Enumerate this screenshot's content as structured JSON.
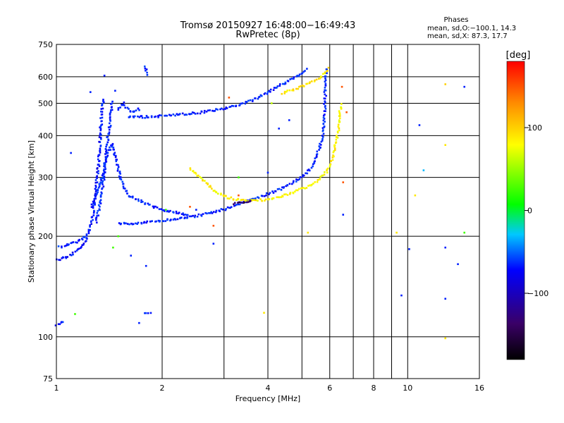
{
  "chart_data": {
    "type": "scatter",
    "title": "Tromsø 20150927 16:48:00−16:49:43",
    "subtitle": "RwPretec (8p)",
    "xlabel": "Frequency [MHz]",
    "ylabel": "Stationary phase Virtual Height [km]",
    "x_scale": "log",
    "y_scale": "log",
    "xlim": [
      1,
      16
    ],
    "ylim": [
      75,
      750
    ],
    "x_ticks": [
      1,
      2,
      4,
      6,
      8,
      10,
      16
    ],
    "x_minor_grid": [
      3,
      5,
      7,
      9
    ],
    "y_ticks": [
      75,
      100,
      200,
      300,
      400,
      500,
      600,
      750
    ],
    "grid": true,
    "phases_box": {
      "title": "Phases",
      "line1": "mean, sd,O:−100.1, 14.3",
      "line2": "mean, sd,X:  87.3, 17.7"
    },
    "colorbar": {
      "label": "[deg]",
      "range": [
        -180,
        180
      ],
      "ticks": [
        {
          "value": 100,
          "label": "100"
        },
        {
          "value": 0,
          "label": "0"
        },
        {
          "value": -100,
          "label": "−100"
        }
      ],
      "colors": [
        "#000000",
        "#3a0066",
        "#0000ff",
        "#00c8ff",
        "#00ff00",
        "#ffff00",
        "#ff8c00",
        "#ff0000"
      ]
    },
    "series": [
      {
        "traces": [
          {
            "phase": -105,
            "points": [
              [
                1.0,
                170
              ],
              [
                1.05,
                172
              ],
              [
                1.1,
                176
              ],
              [
                1.15,
                182
              ],
              [
                1.2,
                190
              ],
              [
                1.22,
                198
              ],
              [
                1.24,
                208
              ],
              [
                1.26,
                222
              ],
              [
                1.28,
                245
              ],
              [
                1.3,
                285
              ],
              [
                1.32,
                330
              ],
              [
                1.33,
                380
              ],
              [
                1.34,
                430
              ],
              [
                1.35,
                480
              ],
              [
                1.36,
                520
              ]
            ]
          },
          {
            "phase": -100,
            "points": [
              [
                1.02,
                186
              ],
              [
                1.07,
                188
              ],
              [
                1.12,
                191
              ],
              [
                1.17,
                195
              ],
              [
                1.22,
                200
              ]
            ]
          },
          {
            "phase": -100,
            "points": [
              [
                1.3,
                220
              ],
              [
                1.33,
                250
              ],
              [
                1.36,
                290
              ],
              [
                1.38,
                340
              ],
              [
                1.4,
                390
              ],
              [
                1.42,
                430
              ],
              [
                1.43,
                470
              ],
              [
                1.44,
                510
              ]
            ]
          },
          {
            "phase": -100,
            "points": [
              [
                1.26,
                245
              ],
              [
                1.3,
                265
              ],
              [
                1.35,
                300
              ],
              [
                1.4,
                350
              ],
              [
                1.44,
                380
              ],
              [
                1.48,
                340
              ],
              [
                1.52,
                300
              ],
              [
                1.56,
                280
              ],
              [
                1.6,
                265
              ]
            ]
          },
          {
            "phase": -100,
            "points": [
              [
                1.5,
                218
              ],
              [
                1.7,
                218
              ],
              [
                2.0,
                223
              ],
              [
                2.3,
                226
              ],
              [
                2.6,
                232
              ],
              [
                2.9,
                238
              ],
              [
                3.2,
                246
              ],
              [
                3.5,
                255
              ],
              [
                3.9,
                265
              ],
              [
                4.3,
                276
              ],
              [
                4.7,
                290
              ],
              [
                5.1,
                305
              ],
              [
                5.4,
                330
              ],
              [
                5.6,
                365
              ],
              [
                5.75,
                410
              ],
              [
                5.8,
                460
              ],
              [
                5.82,
                520
              ],
              [
                5.84,
                580
              ],
              [
                5.86,
                640
              ]
            ]
          },
          {
            "phase": -100,
            "points": [
              [
                1.6,
                455
              ],
              [
                1.8,
                455
              ],
              [
                2.0,
                458
              ],
              [
                2.4,
                465
              ],
              [
                2.8,
                475
              ],
              [
                3.2,
                490
              ],
              [
                3.6,
                510
              ],
              [
                4.0,
                538
              ],
              [
                4.4,
                570
              ],
              [
                4.8,
                600
              ],
              [
                5.2,
                635
              ]
            ]
          },
          {
            "phase": -100,
            "points": [
              [
                1.5,
                480
              ],
              [
                1.55,
                500
              ],
              [
                1.6,
                478
              ],
              [
                1.65,
                470
              ],
              [
                1.7,
                480
              ],
              [
                1.75,
                478
              ]
            ]
          },
          {
            "phase": -100,
            "points": [
              [
                1.6,
                265
              ],
              [
                1.8,
                250
              ],
              [
                2.0,
                240
              ],
              [
                2.2,
                235
              ],
              [
                2.4,
                230
              ]
            ]
          },
          {
            "phase": -100,
            "points": [
              [
                1.79,
                642
              ],
              [
                1.8,
                630
              ],
              [
                1.81,
                615
              ],
              [
                1.82,
                600
              ]
            ]
          },
          {
            "phase": 85,
            "points": [
              [
                2.4,
                320
              ],
              [
                2.6,
                296
              ],
              [
                2.8,
                275
              ],
              [
                3.0,
                264
              ],
              [
                3.2,
                258
              ],
              [
                3.5,
                256
              ],
              [
                3.9,
                257
              ],
              [
                4.3,
                262
              ],
              [
                4.7,
                270
              ],
              [
                5.2,
                282
              ],
              [
                5.6,
                295
              ],
              [
                5.9,
                315
              ],
              [
                6.1,
                340
              ],
              [
                6.25,
                380
              ],
              [
                6.35,
                420
              ],
              [
                6.42,
                470
              ],
              [
                6.45,
                500
              ]
            ]
          },
          {
            "phase": 90,
            "points": [
              [
                4.4,
                535
              ],
              [
                4.8,
                552
              ],
              [
                5.2,
                570
              ],
              [
                5.5,
                590
              ],
              [
                5.8,
                612
              ],
              [
                6.0,
                640
              ]
            ]
          },
          {
            "phase": -100,
            "points": [
              [
                1.0,
                108
              ],
              [
                1.03,
                110
              ],
              [
                1.06,
                112
              ]
            ]
          },
          {
            "phase": -100,
            "points": [
              [
                1.79,
                117
              ],
              [
                1.83,
                118
              ],
              [
                1.87,
                117
              ]
            ]
          },
          {
            "phase": -150,
            "points": [
              [
                3.2,
                250
              ],
              [
                3.4,
                253
              ],
              [
                3.6,
                256
              ]
            ]
          }
        ]
      }
    ],
    "scatter_points": [
      {
        "x": 1.37,
        "y": 605,
        "phase": -100
      },
      {
        "x": 1.47,
        "y": 545,
        "phase": -100
      },
      {
        "x": 1.25,
        "y": 540,
        "phase": -100
      },
      {
        "x": 1.1,
        "y": 355,
        "phase": -100
      },
      {
        "x": 1.5,
        "y": 200,
        "phase": 20
      },
      {
        "x": 2.05,
        "y": 240,
        "phase": 20
      },
      {
        "x": 2.4,
        "y": 245,
        "phase": 150
      },
      {
        "x": 2.5,
        "y": 240,
        "phase": -100
      },
      {
        "x": 2.8,
        "y": 190,
        "phase": -100
      },
      {
        "x": 2.8,
        "y": 215,
        "phase": 150
      },
      {
        "x": 3.3,
        "y": 300,
        "phase": 20
      },
      {
        "x": 3.3,
        "y": 265,
        "phase": 150
      },
      {
        "x": 3.1,
        "y": 520,
        "phase": 150
      },
      {
        "x": 4.0,
        "y": 310,
        "phase": -100
      },
      {
        "x": 4.6,
        "y": 445,
        "phase": -100
      },
      {
        "x": 4.3,
        "y": 420,
        "phase": -100
      },
      {
        "x": 4.1,
        "y": 500,
        "phase": 60
      },
      {
        "x": 5.2,
        "y": 205,
        "phase": 90
      },
      {
        "x": 6.5,
        "y": 560,
        "phase": 150
      },
      {
        "x": 6.55,
        "y": 290,
        "phase": 150
      },
      {
        "x": 6.55,
        "y": 232,
        "phase": -100
      },
      {
        "x": 6.7,
        "y": 470,
        "phase": 150
      },
      {
        "x": 9.6,
        "y": 133,
        "phase": -100
      },
      {
        "x": 10.5,
        "y": 265,
        "phase": 90
      },
      {
        "x": 10.8,
        "y": 430,
        "phase": -100
      },
      {
        "x": 11.1,
        "y": 315,
        "phase": -50
      },
      {
        "x": 12.8,
        "y": 570,
        "phase": 100
      },
      {
        "x": 12.8,
        "y": 375,
        "phase": 90
      },
      {
        "x": 12.8,
        "y": 130,
        "phase": -100
      },
      {
        "x": 12.8,
        "y": 185,
        "phase": -100
      },
      {
        "x": 12.8,
        "y": 99,
        "phase": 90
      },
      {
        "x": 14.5,
        "y": 560,
        "phase": -100
      },
      {
        "x": 14.5,
        "y": 205,
        "phase": 20
      },
      {
        "x": 13.9,
        "y": 165,
        "phase": -100
      },
      {
        "x": 1.13,
        "y": 117,
        "phase": 20
      },
      {
        "x": 1.45,
        "y": 185,
        "phase": 20
      },
      {
        "x": 1.63,
        "y": 175,
        "phase": -100
      },
      {
        "x": 1.8,
        "y": 163,
        "phase": -100
      },
      {
        "x": 1.72,
        "y": 110,
        "phase": -100
      },
      {
        "x": 3.9,
        "y": 118,
        "phase": 90
      },
      {
        "x": 9.3,
        "y": 205,
        "phase": 90
      },
      {
        "x": 10.1,
        "y": 183,
        "phase": -100
      }
    ]
  }
}
